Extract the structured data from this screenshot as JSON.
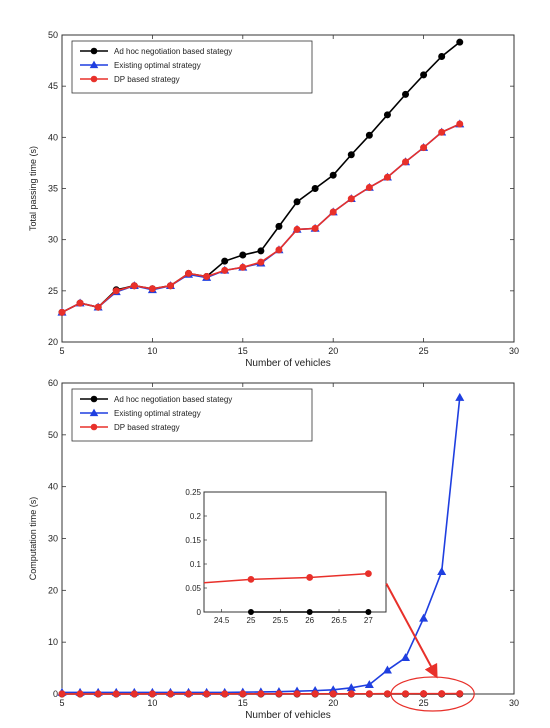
{
  "chart_data": [
    {
      "type": "line",
      "xlabel": "Number of vehicles",
      "ylabel": "Total passing time (s)",
      "xlim": [
        5,
        30
      ],
      "ylim": [
        20,
        50
      ],
      "xticks": [
        5,
        10,
        15,
        20,
        25,
        30
      ],
      "yticks": [
        20,
        25,
        30,
        35,
        40,
        45,
        50
      ],
      "legend_position": "top-left",
      "grid": false,
      "x": [
        5,
        6,
        7,
        8,
        9,
        10,
        11,
        12,
        13,
        14,
        15,
        16,
        17,
        18,
        19,
        20,
        21,
        22,
        23,
        24,
        25,
        26,
        27
      ],
      "series": [
        {
          "name": "Ad hoc negotiation based stategy",
          "color": "#000000",
          "marker": "circle",
          "values": [
            22.9,
            23.8,
            23.4,
            25.1,
            25.5,
            25.2,
            25.5,
            26.7,
            26.4,
            27.9,
            28.5,
            28.9,
            31.3,
            33.7,
            35.0,
            36.3,
            38.3,
            40.2,
            42.2,
            44.2,
            46.1,
            47.9,
            49.3
          ]
        },
        {
          "name": "Existing optimal strategy",
          "color": "#1f3fe0",
          "marker": "triangle",
          "values": [
            22.9,
            23.8,
            23.4,
            24.9,
            25.5,
            25.1,
            25.5,
            26.6,
            26.3,
            27.0,
            27.3,
            27.7,
            29.0,
            31.0,
            31.1,
            32.7,
            34.0,
            35.1,
            36.1,
            37.6,
            39.0,
            40.5,
            41.3
          ]
        },
        {
          "name": "DP based strategy",
          "color": "#e8302a",
          "marker": "circle",
          "values": [
            22.9,
            23.8,
            23.4,
            25.0,
            25.5,
            25.2,
            25.5,
            26.7,
            26.4,
            27.0,
            27.3,
            27.8,
            29.0,
            31.0,
            31.1,
            32.7,
            34.0,
            35.1,
            36.1,
            37.6,
            39.0,
            40.5,
            41.3
          ]
        }
      ]
    },
    {
      "type": "line",
      "xlabel": "Number of vehicles",
      "ylabel": "Computation time (s)",
      "xlim": [
        5,
        30
      ],
      "ylim": [
        0,
        60
      ],
      "xticks": [
        5,
        10,
        15,
        20,
        25,
        30
      ],
      "yticks": [
        0,
        10,
        20,
        30,
        40,
        50,
        60
      ],
      "legend_position": "top-left",
      "grid": false,
      "x": [
        5,
        6,
        7,
        8,
        9,
        10,
        11,
        12,
        13,
        14,
        15,
        16,
        17,
        18,
        19,
        20,
        21,
        22,
        23,
        24,
        25,
        26,
        27
      ],
      "series": [
        {
          "name": "Ad hoc negotiation based stategy",
          "color": "#000000",
          "marker": "circle",
          "values": [
            0,
            0,
            0,
            0,
            0,
            0,
            0,
            0,
            0,
            0,
            0,
            0,
            0,
            0,
            0,
            0,
            0,
            0,
            0,
            0,
            0,
            0,
            0
          ]
        },
        {
          "name": "Existing optimal strategy",
          "color": "#1f3fe0",
          "marker": "triangle",
          "values": [
            0.3,
            0.3,
            0.3,
            0.3,
            0.3,
            0.3,
            0.3,
            0.3,
            0.3,
            0.3,
            0.35,
            0.4,
            0.45,
            0.55,
            0.65,
            0.8,
            1.2,
            1.8,
            4.6,
            7.0,
            14.6,
            23.6,
            57.2
          ]
        },
        {
          "name": "DP based strategy",
          "color": "#e8302a",
          "marker": "circle",
          "values": [
            0.02,
            0.02,
            0.02,
            0.02,
            0.02,
            0.03,
            0.03,
            0.03,
            0.03,
            0.03,
            0.04,
            0.04,
            0.04,
            0.04,
            0.05,
            0.05,
            0.05,
            0.05,
            0.06,
            0.06,
            0.07,
            0.072,
            0.08
          ]
        }
      ],
      "inset": {
        "xlim": [
          24.2,
          27.3
        ],
        "ylim": [
          0,
          0.25
        ],
        "xticks": [
          24.5,
          25,
          25.5,
          26,
          26.5,
          27
        ],
        "yticks": [
          0,
          0.05,
          0.1,
          0.15,
          0.2,
          0.25
        ],
        "x": [
          25,
          26,
          27
        ],
        "series": [
          {
            "name": "Ad hoc negotiation based stategy",
            "color": "#000000",
            "values": [
              0,
              0,
              0
            ]
          },
          {
            "name": "DP based strategy",
            "color": "#e8302a",
            "values": [
              0.068,
              0.072,
              0.08
            ]
          }
        ],
        "red_line_start": [
          24.2,
          0.061
        ]
      },
      "highlight": {
        "color": "#e8302a",
        "x_range": [
          23.2,
          27.8
        ],
        "y_center": 0
      }
    }
  ]
}
